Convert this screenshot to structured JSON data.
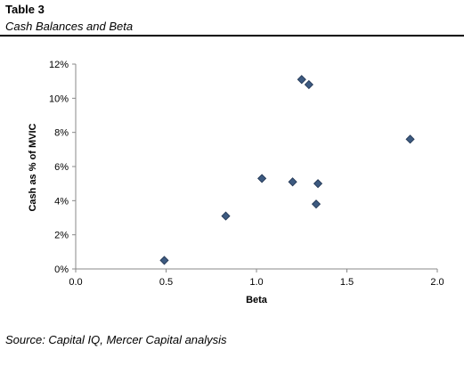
{
  "header": {
    "table_number": "Table 3",
    "caption": "Cash Balances and Beta"
  },
  "footer": {
    "source": "Source: Capital IQ, Mercer Capital analysis"
  },
  "chart_data": {
    "type": "scatter",
    "title": "",
    "xlabel": "Beta",
    "ylabel": "Cash as % of MVIC",
    "xlim": [
      0.0,
      2.0
    ],
    "ylim": [
      0,
      12
    ],
    "x_ticks": [
      0.0,
      0.5,
      1.0,
      1.5,
      2.0
    ],
    "x_tick_labels": [
      "0.0",
      "0.5",
      "1.0",
      "1.5",
      "2.0"
    ],
    "y_ticks": [
      0,
      2,
      4,
      6,
      8,
      10,
      12
    ],
    "y_tick_labels": [
      "0%",
      "2%",
      "4%",
      "6%",
      "8%",
      "10%",
      "12%"
    ],
    "grid": false,
    "marker": "diamond",
    "marker_color": "#3d5a80",
    "points": [
      {
        "x": 0.49,
        "y": 0.5
      },
      {
        "x": 0.83,
        "y": 3.1
      },
      {
        "x": 1.03,
        "y": 5.3
      },
      {
        "x": 1.2,
        "y": 5.1
      },
      {
        "x": 1.25,
        "y": 11.1
      },
      {
        "x": 1.29,
        "y": 10.8
      },
      {
        "x": 1.33,
        "y": 3.8
      },
      {
        "x": 1.34,
        "y": 5.0
      },
      {
        "x": 1.85,
        "y": 7.6
      }
    ]
  }
}
